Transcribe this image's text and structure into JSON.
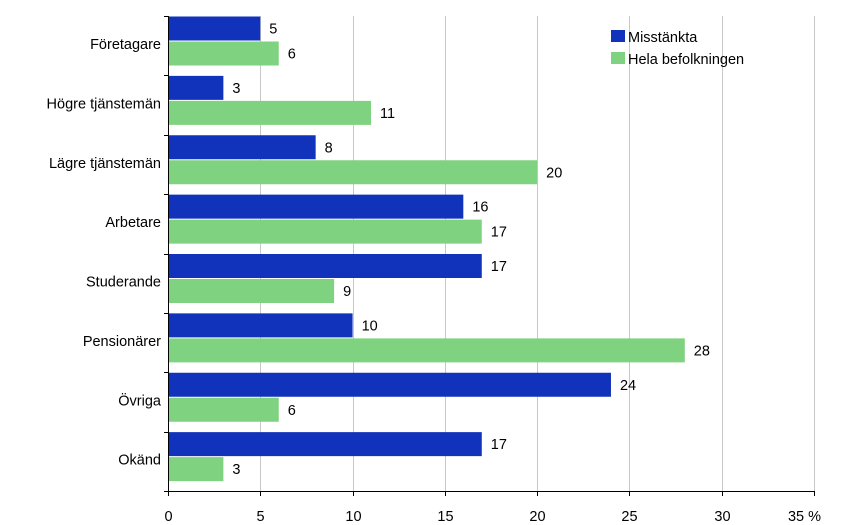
{
  "chart_data": {
    "type": "bar",
    "orientation": "horizontal",
    "categories": [
      "Företagare",
      "Högre tjänstemän",
      "Lägre tjänstemän",
      "Arbetare",
      "Studerande",
      "Pensionärer",
      "Övriga",
      "Okänd"
    ],
    "series": [
      {
        "name": "Misstänkta",
        "color": "#1133bb",
        "values": [
          5,
          3,
          8,
          16,
          17,
          10,
          24,
          17
        ]
      },
      {
        "name": "Hela befolkningen",
        "color": "#7fd27f",
        "values": [
          6,
          11,
          20,
          17,
          9,
          28,
          6,
          3
        ]
      }
    ],
    "xlim": [
      0,
      35
    ],
    "xticks": [
      0,
      5,
      10,
      15,
      20,
      25,
      30,
      35
    ],
    "xtick_labels": [
      "0",
      "5",
      "10",
      "15",
      "20",
      "25",
      "30",
      "35 %"
    ],
    "grid": true,
    "legend_position": "top-right",
    "show_value_labels": true
  }
}
